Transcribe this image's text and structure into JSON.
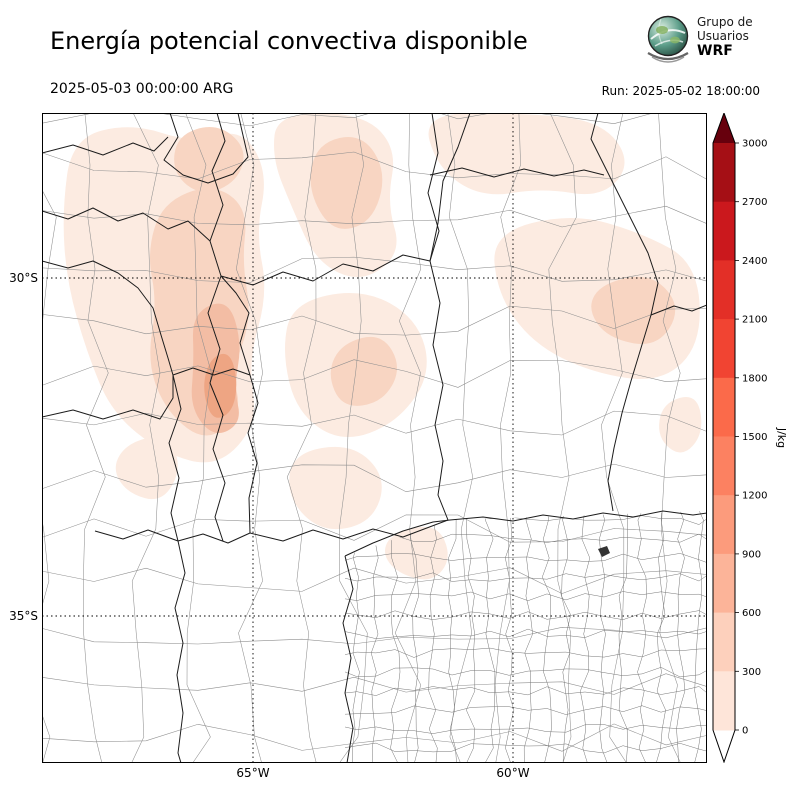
{
  "header": {
    "title": "Energía potencial convectiva disponible",
    "valid_time": "2025-05-03 00:00:00 ARG",
    "run_label": "Run: 2025-05-02 18:00:00",
    "logo": {
      "line1": "Grupo de",
      "line2": "Usuarios",
      "line3": "WRF"
    }
  },
  "map": {
    "lat_labels": [
      "30°S",
      "35°S"
    ],
    "lon_labels": [
      "65°W",
      "60°W"
    ],
    "shade_colors": [
      "#fcebe1",
      "#f8d5c2",
      "#f3bda4",
      "#eea583"
    ]
  },
  "colorbar": {
    "unit": "J/kg",
    "ticks": [
      "3000",
      "2700",
      "2400",
      "2100",
      "1800",
      "1500",
      "1200",
      "900",
      "600",
      "300",
      "0"
    ],
    "band_colors_top_to_bottom": [
      "#a50f15",
      "#cb181d",
      "#e32f27",
      "#f14432",
      "#fb6a4a",
      "#fc8161",
      "#fc9b7c",
      "#fcb499",
      "#fdd0bc",
      "#fee5d9"
    ],
    "top_arrow_color": "#67000d",
    "bottom_arrow_color": "#ffffff"
  },
  "chart_data": {
    "type": "heatmap",
    "title": "Energía potencial convectiva disponible",
    "units": "J/kg",
    "scale_ticks": [
      0,
      300,
      600,
      900,
      1200,
      1500,
      1800,
      2100,
      2400,
      2700,
      3000
    ],
    "valid_time": "2025-05-03 00:00:00 ARG",
    "run_time": "2025-05-02 18:00:00",
    "extent": {
      "lon_ticks": [
        "65°W",
        "60°W"
      ],
      "lat_ticks": [
        "30°S",
        "35°S"
      ]
    },
    "summary": "CAPE mostly 0–900 J/kg over northwestern and northern Argentina, strongest (~600–900) near 66.5°W 31–33°S; near zero over central and southern part of the domain."
  }
}
